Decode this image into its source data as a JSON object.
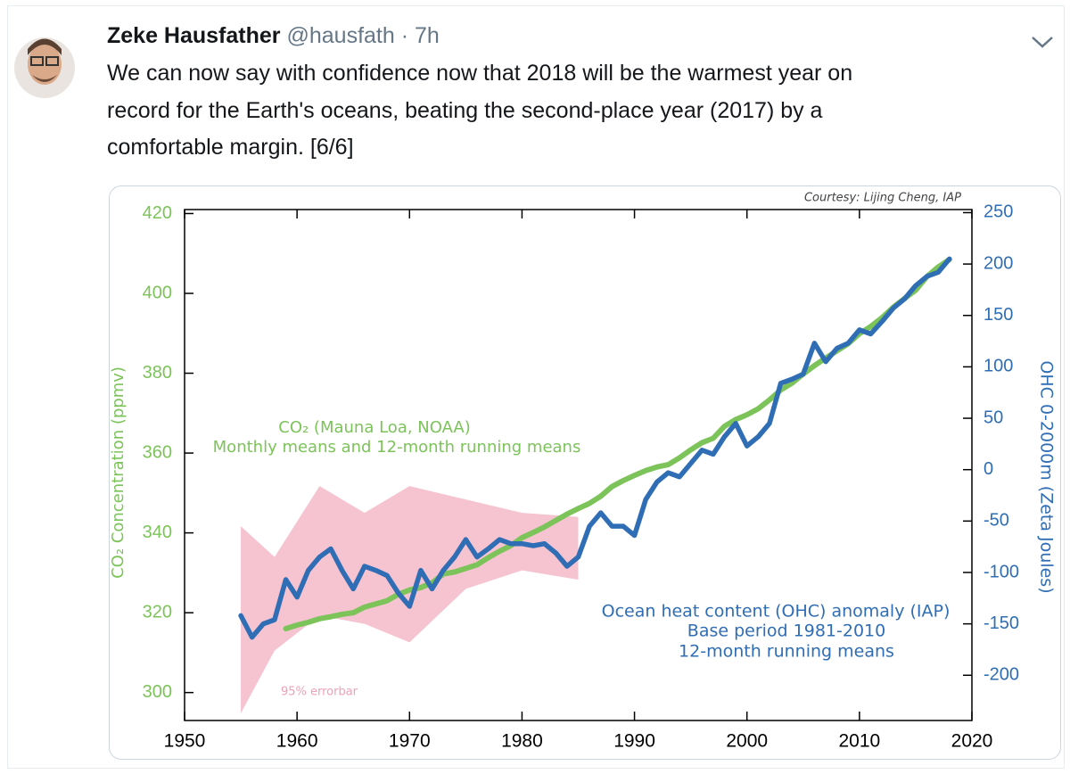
{
  "tweet": {
    "author": "Zeke Hausfather",
    "handle": "@hausfath",
    "time": "· 7h",
    "text_lines": [
      "We can now say with confidence now that 2018 will be the warmest year on",
      "record for the Earth's oceans, beating the second-place year (2017) by a",
      "comfortable margin. [6/6]"
    ]
  },
  "chart_data": {
    "type": "line",
    "courtesy": "Courtesy: Lijing Cheng, IAP",
    "y_label": "CO₂ Concentration (ppmv)",
    "y2_label": "OHC 0-2000m (Zeta Joules)",
    "annotations": [
      "CO₂ (Mauna Loa, NOAA)",
      "Monthly means and 12-month running means",
      "Ocean heat content (OHC) anomaly (IAP)",
      "Base period 1981-2010",
      "12-month running means",
      "95% errorbar"
    ],
    "xlim": [
      1950,
      2020
    ],
    "xticks": [
      1950,
      1960,
      1970,
      1980,
      1990,
      2000,
      2010,
      2020
    ],
    "ylim": [
      293,
      421
    ],
    "yticks": [
      300,
      320,
      340,
      360,
      380,
      400,
      420
    ],
    "y2lim": [
      -244,
      253
    ],
    "y2ticks": [
      -200,
      -150,
      -100,
      -50,
      0,
      50,
      100,
      150,
      200,
      250
    ],
    "series": [
      {
        "color": "#7cc35a",
        "axis": "y",
        "x": [
          1959,
          1960,
          1961,
          1962,
          1963,
          1964,
          1965,
          1966,
          1967,
          1968,
          1969,
          1970,
          1971,
          1972,
          1973,
          1974,
          1975,
          1976,
          1977,
          1978,
          1979,
          1980,
          1981,
          1982,
          1983,
          1984,
          1985,
          1986,
          1987,
          1988,
          1989,
          1990,
          1991,
          1992,
          1993,
          1994,
          1995,
          1996,
          1997,
          1998,
          1999,
          2000,
          2001,
          2002,
          2003,
          2004,
          2005,
          2006,
          2007,
          2008,
          2009,
          2010,
          2011,
          2012,
          2013,
          2014,
          2015,
          2016,
          2017,
          2018
        ],
        "values": [
          316.0,
          316.9,
          317.6,
          318.5,
          319.0,
          319.6,
          320.0,
          321.4,
          322.2,
          323.0,
          324.6,
          325.7,
          326.3,
          327.5,
          329.7,
          330.2,
          331.1,
          332.0,
          333.8,
          335.4,
          336.8,
          338.8,
          340.1,
          341.5,
          343.1,
          344.7,
          346.1,
          347.4,
          349.2,
          351.6,
          353.1,
          354.4,
          355.6,
          356.5,
          357.1,
          358.8,
          360.8,
          362.6,
          363.7,
          366.7,
          368.4,
          369.6,
          371.1,
          373.3,
          375.8,
          377.5,
          379.8,
          381.9,
          383.8,
          385.6,
          387.4,
          389.9,
          391.7,
          393.9,
          396.5,
          398.7,
          400.8,
          404.2,
          406.6,
          408.5
        ]
      },
      {
        "color": "#2f6db5",
        "axis": "y2",
        "x": [
          1955,
          1956,
          1957,
          1958,
          1959,
          1960,
          1961,
          1962,
          1963,
          1964,
          1965,
          1966,
          1967,
          1968,
          1969,
          1970,
          1971,
          1972,
          1973,
          1974,
          1975,
          1976,
          1977,
          1978,
          1979,
          1980,
          1981,
          1982,
          1983,
          1984,
          1985,
          1986,
          1987,
          1988,
          1989,
          1990,
          1991,
          1992,
          1993,
          1994,
          1995,
          1996,
          1997,
          1998,
          1999,
          2000,
          2001,
          2002,
          2003,
          2004,
          2005,
          2006,
          2007,
          2008,
          2009,
          2010,
          2011,
          2012,
          2013,
          2014,
          2015,
          2016,
          2017,
          2018
        ],
        "values": [
          -142,
          -163,
          -150,
          -146,
          -107,
          -124,
          -98,
          -85,
          -77,
          -98,
          -116,
          -94,
          -98,
          -103,
          -120,
          -133,
          -98,
          -116,
          -98,
          -85,
          -68,
          -85,
          -77,
          -68,
          -72,
          -72,
          -74,
          -72,
          -81,
          -94,
          -85,
          -55,
          -42,
          -55,
          -55,
          -64,
          -29,
          -12,
          -3,
          -7,
          6,
          19,
          15,
          32,
          45,
          23,
          32,
          45,
          84,
          88,
          93,
          123,
          105,
          118,
          123,
          136,
          132,
          144,
          157,
          166,
          179,
          188,
          192,
          205
        ]
      }
    ],
    "errorbar": {
      "color": "#f4b8c8",
      "axis": "y2",
      "x": [
        1955,
        1958,
        1962,
        1966,
        1970,
        1975,
        1980,
        1985
      ],
      "upper": [
        -55,
        -85,
        -16,
        -42,
        -16,
        -29,
        -42,
        -46
      ],
      "lower": [
        -237,
        -176,
        -142,
        -150,
        -168,
        -116,
        -98,
        -107
      ]
    }
  }
}
